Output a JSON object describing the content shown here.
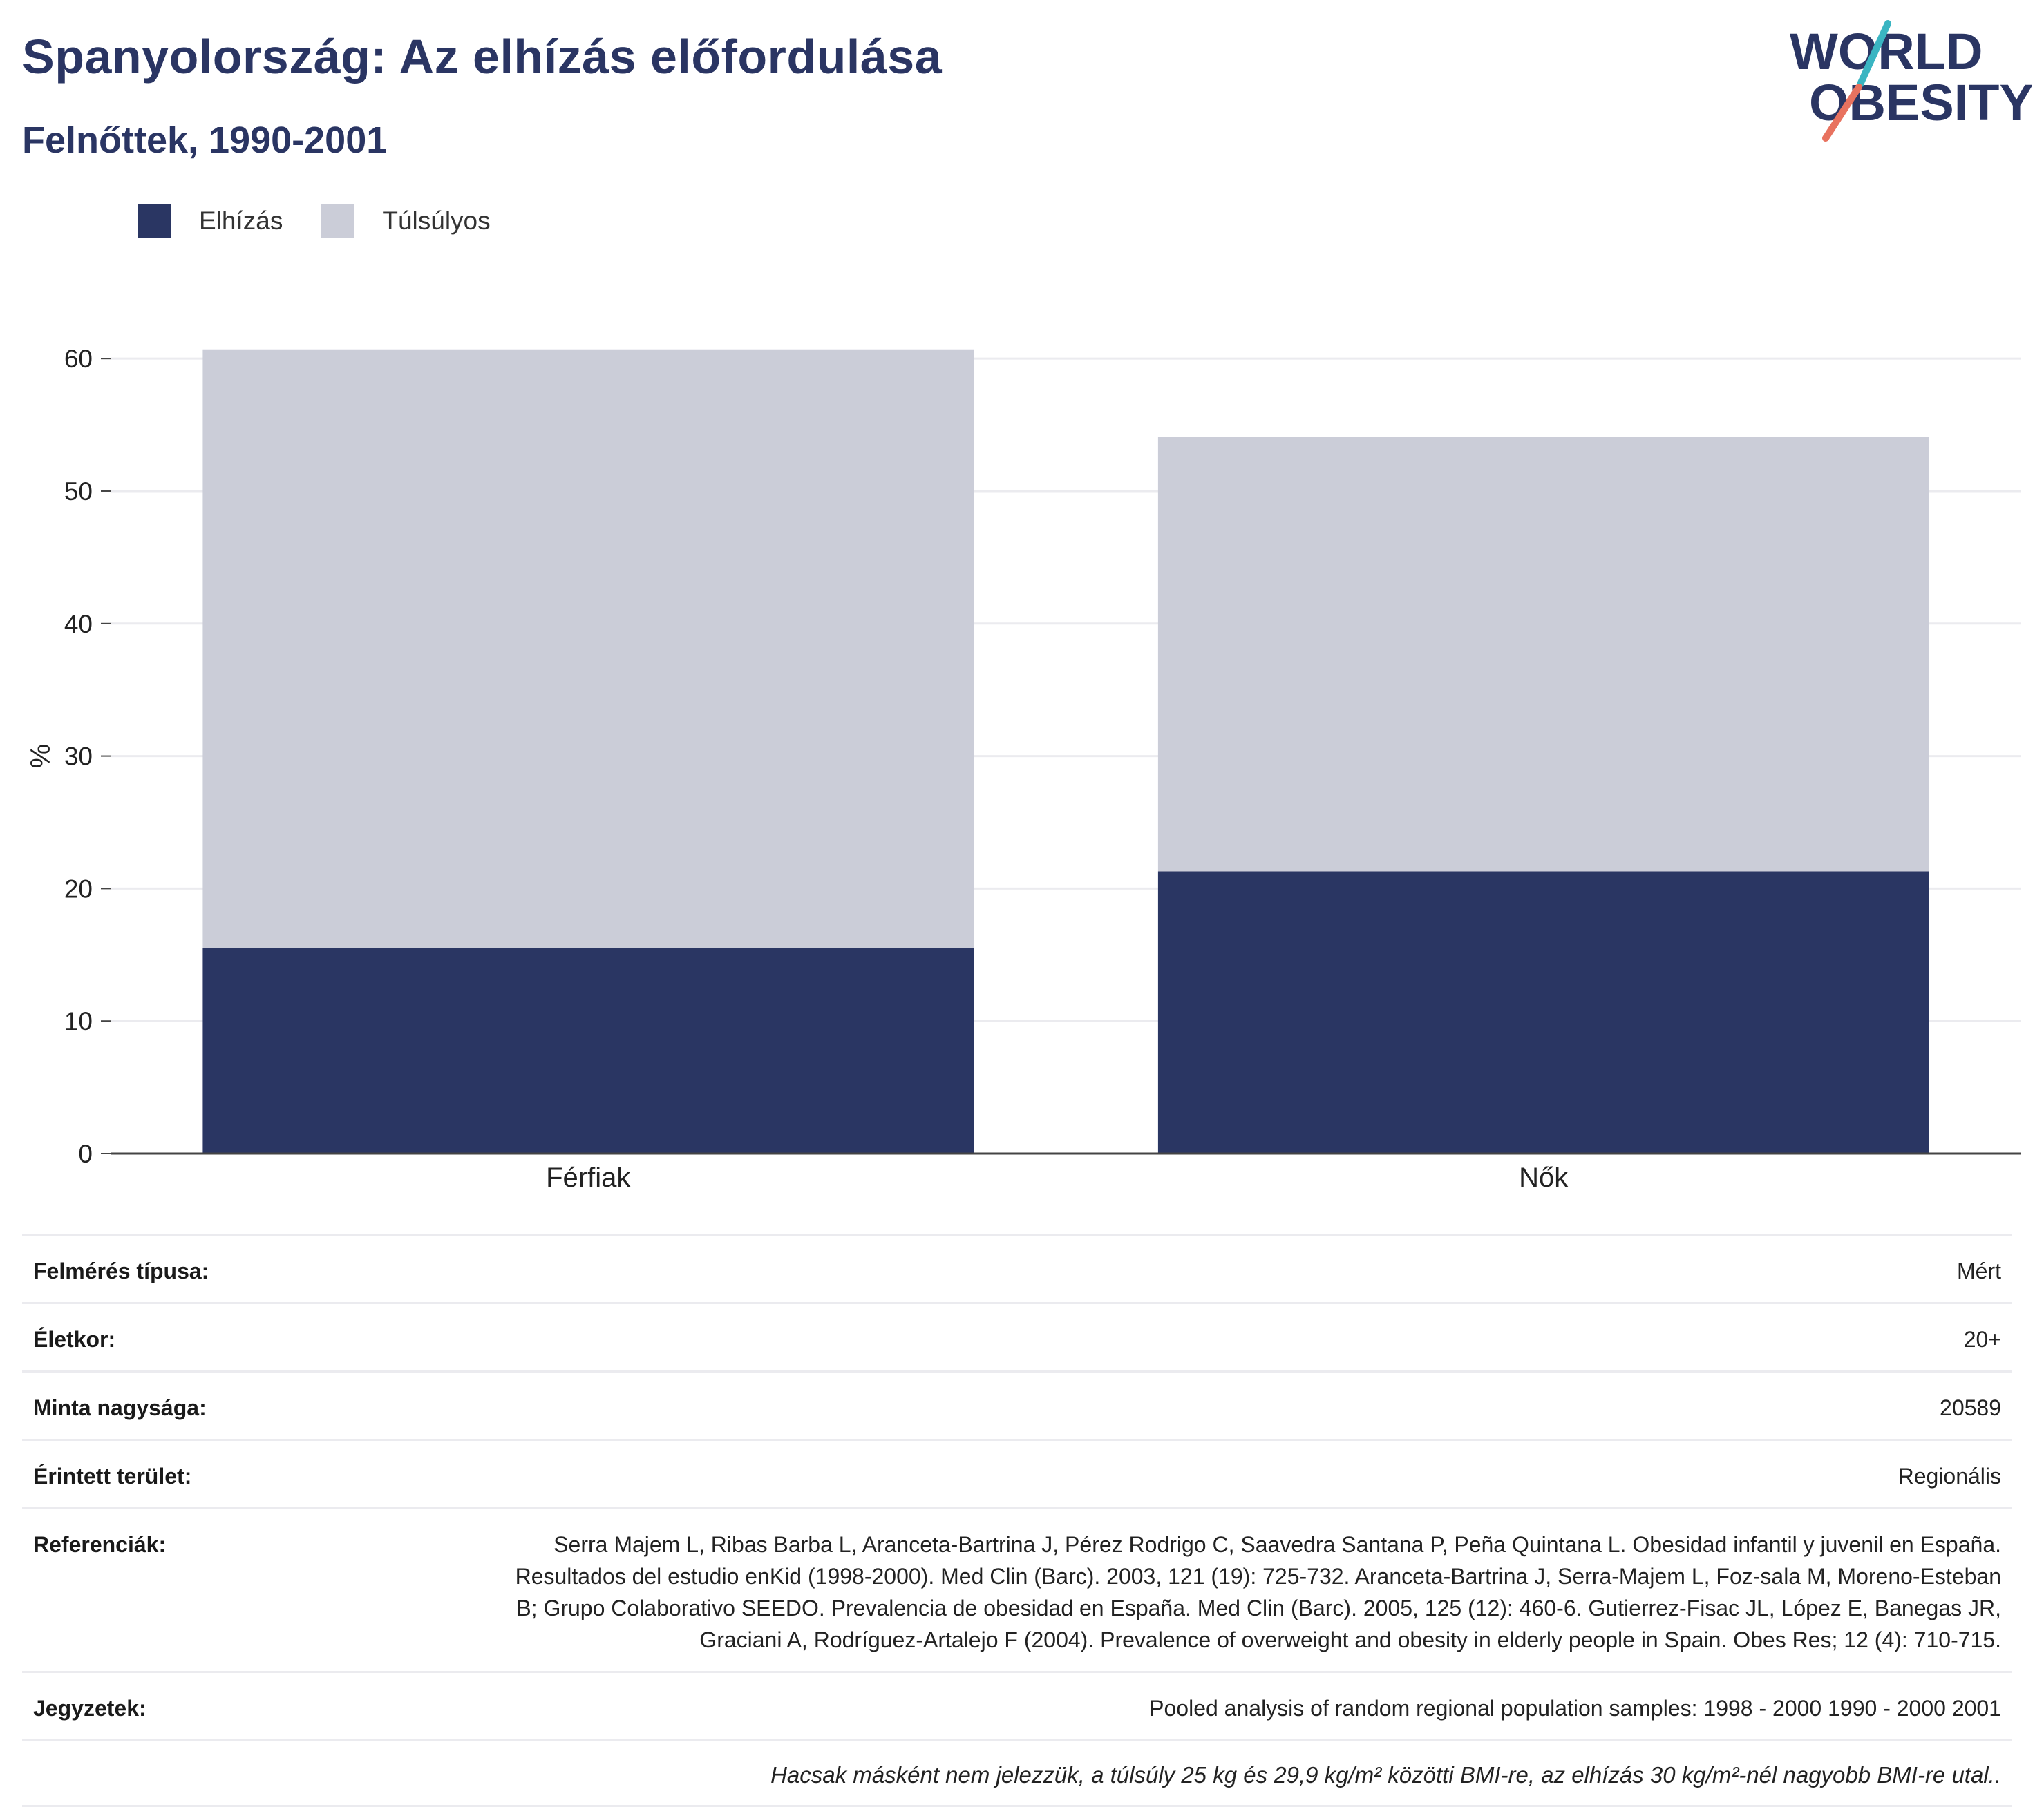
{
  "header": {
    "title": "Spanyolország: Az elhízás előfordulása",
    "subtitle": "Felnőttek, 1990-2001"
  },
  "logo": {
    "line1": "WORLD",
    "line2": "OBESITY"
  },
  "colors": {
    "obesity": "#2a3663",
    "overweight": "#cbcdd8",
    "title": "#2a3563",
    "logo_teal": "#3ab5c2",
    "logo_coral": "#e8725f"
  },
  "legend": [
    {
      "label": "Elhízás",
      "color": "#2a3663"
    },
    {
      "label": "Túlsúlyos",
      "color": "#cbcdd8"
    }
  ],
  "chart_data": {
    "type": "bar",
    "stacked": true,
    "categories": [
      "Férfiak",
      "Nők"
    ],
    "series": [
      {
        "name": "Elhízás",
        "values": [
          15.5,
          21.3
        ]
      },
      {
        "name": "Túlsúlyos",
        "values": [
          45.2,
          32.8
        ]
      }
    ],
    "ylabel": "%",
    "ylim": [
      0,
      60
    ],
    "yticks": [
      0,
      10,
      20,
      30,
      40,
      50,
      60
    ],
    "grid": true,
    "legend_position": "top-left"
  },
  "meta": [
    {
      "label": "Felmérés típusa:",
      "value": "Mért"
    },
    {
      "label": "Életkor:",
      "value": "20+"
    },
    {
      "label": "Minta nagysága:",
      "value": "20589"
    },
    {
      "label": "Érintett terület:",
      "value": "Regionális"
    },
    {
      "label": "Referenciák:",
      "value": "Serra Majem L, Ribas Barba L, Aranceta-Bartrina J, Pérez Rodrigo C, Saavedra Santana P, Peña Quintana L. Obesidad infantil y juvenil en España. Resultados del estudio enKid (1998-2000). Med Clin (Barc). 2003, 121 (19): 725-732. Aranceta-Bartrina J, Serra-Majem L, Foz-sala M, Moreno-Esteban B; Grupo Colaborativo SEEDO. Prevalencia de obesidad en España. Med Clin (Barc). 2005, 125 (12): 460-6. Gutierrez-Fisac JL, López E, Banegas JR, Graciani A, Rodríguez-Artalejo F (2004). Prevalence of overweight and obesity in elderly people in Spain. Obes Res; 12 (4): 710-715."
    },
    {
      "label": "Jegyzetek:",
      "value": "Pooled analysis of random regional population samples: 1998 - 2000 1990 - 2000 2001"
    }
  ],
  "footnote": "Hacsak másként nem jelezzük, a túlsúly 25 kg és 29,9 kg/m² közötti BMI-re, az elhízás 30 kg/m²-nél nagyobb BMI-re utal.."
}
